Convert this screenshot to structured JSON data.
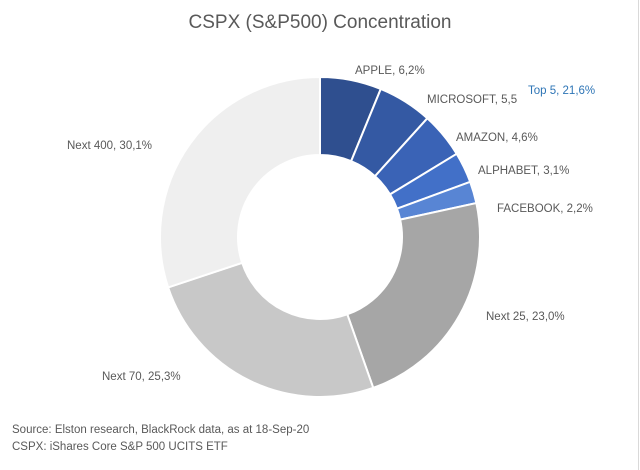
{
  "chart_data": {
    "type": "pie",
    "title": "CSPX (S&P500) Concentration",
    "categories": [
      "APPLE",
      "MICROSOFT",
      "AMAZON",
      "ALPHABET",
      "FACEBOOK",
      "Next 25",
      "Next 70",
      "Next 400"
    ],
    "values": [
      6.2,
      5.5,
      4.6,
      3.1,
      2.2,
      23.0,
      25.3,
      30.1
    ],
    "slice_labels": [
      "APPLE, 6,2%",
      "MICROSOFT, 5,5",
      "AMAZON, 4,6%",
      "ALPHABET, 3,1%",
      "FACEBOOK, 2,2%",
      "Next 25, 23,0%",
      "Next 70, 25,3%",
      "Next 400, 30,1%"
    ],
    "colors": [
      "#2f4f8f",
      "#3459a3",
      "#3a63b6",
      "#4270c8",
      "#5885d4",
      "#a6a6a6",
      "#c8c8c8",
      "#efefef"
    ],
    "annotation": "Top 5, 21,6%",
    "annotation_color": "#2e75b6",
    "donut": true,
    "legend": "none"
  },
  "source": {
    "line1": "Source: Elston research, BlackRock data, as at 18-Sep-20",
    "line2": "CSPX: iShares Core S&P 500 UCITS ETF"
  }
}
